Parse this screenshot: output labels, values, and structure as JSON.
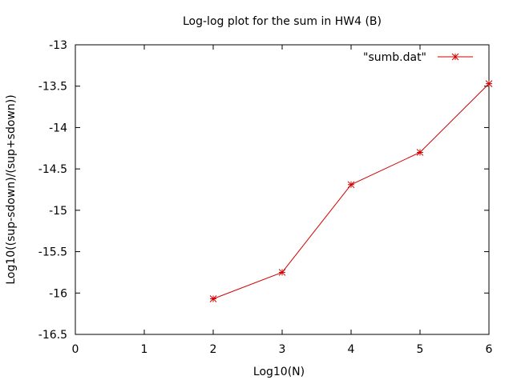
{
  "chart_data": {
    "type": "line",
    "title": "Log-log plot for the sum in HW4 (B)",
    "xlabel": "Log10(N)",
    "ylabel": "Log10((sup-sdown)/(sup+sdown))",
    "xlim": [
      0,
      6
    ],
    "ylim": [
      -16.5,
      -13
    ],
    "xticks": [
      "0",
      "1",
      "2",
      "3",
      "4",
      "5",
      "6"
    ],
    "yticks": [
      "-13",
      "-13.5",
      "-14",
      "-14.5",
      "-15",
      "-15.5",
      "-16",
      "-16.5"
    ],
    "grid": false,
    "legend_position": "top-right",
    "series": [
      {
        "name": "\"sumb.dat\"",
        "color": "#d00000",
        "marker": "star",
        "points": [
          {
            "x": 2,
            "y": -16.07
          },
          {
            "x": 3,
            "y": -15.75
          },
          {
            "x": 4,
            "y": -14.69
          },
          {
            "x": 5,
            "y": -14.3
          },
          {
            "x": 6,
            "y": -13.47
          }
        ]
      }
    ]
  }
}
